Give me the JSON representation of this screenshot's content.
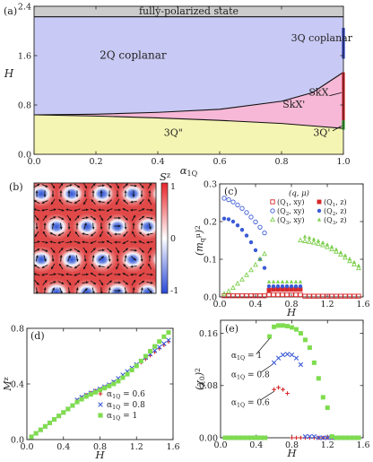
{
  "panel_labels": [
    "(a)",
    "(b)",
    "(c)",
    "(d)",
    "(e)"
  ],
  "chart_data": [
    {
      "id": "a",
      "type": "area",
      "xlabel": "α_{1Q}",
      "ylabel": "H",
      "xlim": [
        0.0,
        1.0
      ],
      "ylim": [
        0.0,
        2.4
      ],
      "xticks": [
        "0.0",
        "0.2",
        "0.4",
        "0.6",
        "0.8",
        "1.0"
      ],
      "yticks": [
        "0.0",
        "0.8",
        "1.6",
        "2.4"
      ],
      "regions": [
        {
          "name": "fully-polarized state",
          "color": "#cccccc",
          "label_pos": [
            0.5,
            2.33
          ]
        },
        {
          "name": "2Q coplanar",
          "color": "#c9c9f5",
          "label_pos": [
            0.32,
            1.55
          ]
        },
        {
          "name": "SkX'",
          "color": "#f6b8d6",
          "label_pos": [
            0.84,
            0.76
          ]
        },
        {
          "name": "3Q\"",
          "color": "#f5f5b3",
          "label_pos": [
            0.45,
            0.3
          ]
        }
      ],
      "boundary_2Q_SkX": [
        [
          0.0,
          0.64
        ],
        [
          0.2,
          0.65
        ],
        [
          0.4,
          0.68
        ],
        [
          0.6,
          0.73
        ],
        [
          0.8,
          0.86
        ],
        [
          0.9,
          1.0
        ],
        [
          1.0,
          1.33
        ]
      ],
      "boundary_SkX_3Q": [
        [
          0.0,
          0.64
        ],
        [
          0.2,
          0.62
        ],
        [
          0.4,
          0.59
        ],
        [
          0.6,
          0.55
        ],
        [
          0.8,
          0.5
        ],
        [
          0.9,
          0.46
        ],
        [
          1.0,
          0.42
        ]
      ],
      "saturation_H": 2.23,
      "edge_segments": [
        {
          "name": "3Q coplanar",
          "color": "#2a3fc4",
          "range": [
            1.55,
            2.05
          ]
        },
        {
          "name": "SkX",
          "color": "#d81e24",
          "range": [
            0.55,
            1.33
          ]
        },
        {
          "name": "3Q'",
          "color": "#2ea82e",
          "range": [
            0.4,
            0.55
          ]
        }
      ],
      "annotations": [
        {
          "text": "3Q coplanar",
          "at": [
            0.93,
            1.83
          ]
        },
        {
          "text": "SkX",
          "at": [
            0.92,
            0.95
          ]
        },
        {
          "text": "SkX'",
          "at": [
            0.84,
            0.76
          ]
        },
        {
          "text": "3Q'",
          "at": [
            0.93,
            0.3
          ]
        },
        {
          "text": "3Q\"",
          "at": [
            0.45,
            0.3
          ]
        }
      ]
    },
    {
      "id": "b",
      "type": "heatmap",
      "colorbar_label": "S^z",
      "colorbar_ticks": [
        "1",
        "0",
        "-1"
      ],
      "vmin": -1,
      "vmax": 1
    },
    {
      "id": "c",
      "type": "scatter",
      "xlabel": "H",
      "ylabel": "(m_q^μ)^2",
      "xlim": [
        0.0,
        1.6
      ],
      "ylim": [
        0.0,
        0.3
      ],
      "xticks": [
        "0.0",
        "0.4",
        "0.8",
        "1.2",
        "1.6"
      ],
      "yticks": [
        "0.0",
        "0.1",
        "0.2",
        "0.3"
      ],
      "legend_title": "(q, μ)",
      "legend_placement": "top-right",
      "series": [
        {
          "name": "(Q1, xy)",
          "marker": "square-open",
          "color": "#d62728",
          "x": [
            0.05,
            0.1,
            0.15,
            0.2,
            0.25,
            0.3,
            0.35,
            0.4,
            0.45,
            0.5,
            0.55,
            0.6,
            0.65,
            0.7,
            0.75,
            0.8,
            0.85,
            0.9,
            0.95,
            1.0,
            1.05,
            1.1,
            1.15,
            1.2,
            1.25,
            1.3,
            1.35,
            1.4,
            1.45,
            1.5,
            1.55
          ],
          "y": [
            0.003,
            0.003,
            0.003,
            0.003,
            0.003,
            0.003,
            0.003,
            0.003,
            0.003,
            0.003,
            0.006,
            0.006,
            0.006,
            0.006,
            0.006,
            0.006,
            0.006,
            0.006,
            0.002,
            0.002,
            0.002,
            0.002,
            0.002,
            0.002,
            0.002,
            0.002,
            0.002,
            0.002,
            0.002,
            0.002,
            0.002
          ]
        },
        {
          "name": "(Q1, z)",
          "marker": "square",
          "color": "#d62728",
          "x": [
            0.55,
            0.6,
            0.65,
            0.7,
            0.75,
            0.8,
            0.85,
            0.9
          ],
          "y": [
            0.018,
            0.02,
            0.02,
            0.02,
            0.02,
            0.02,
            0.02,
            0.02
          ]
        },
        {
          "name": "(Q2, xy)",
          "marker": "circle-open",
          "color": "#3b5bd6",
          "x": [
            0.05,
            0.1,
            0.15,
            0.2,
            0.25,
            0.3,
            0.35,
            0.4,
            0.45,
            0.5
          ],
          "y": [
            0.262,
            0.258,
            0.252,
            0.244,
            0.235,
            0.224,
            0.212,
            0.199,
            0.185,
            0.17
          ]
        },
        {
          "name": "(Q2, z)",
          "marker": "circle",
          "color": "#3b5bd6",
          "x": [
            0.05,
            0.1,
            0.15,
            0.2,
            0.25,
            0.3,
            0.35,
            0.4,
            0.45,
            0.5,
            0.55,
            0.6,
            0.65,
            0.7,
            0.75,
            0.8,
            0.85,
            0.9
          ],
          "y": [
            0.208,
            0.206,
            0.2,
            0.19,
            0.178,
            0.163,
            0.145,
            0.124,
            0.1,
            0.077,
            0.028,
            0.028,
            0.028,
            0.028,
            0.028,
            0.028,
            0.028,
            0.028
          ]
        },
        {
          "name": "(Q3, xy)",
          "marker": "triangle-open",
          "color": "#7fcf4f",
          "x": [
            0.05,
            0.1,
            0.15,
            0.2,
            0.25,
            0.3,
            0.35,
            0.4,
            0.45,
            0.5,
            0.9,
            0.95,
            1.0,
            1.05,
            1.1,
            1.15,
            1.2,
            1.25,
            1.3,
            1.35,
            1.4,
            1.45,
            1.5,
            1.55
          ],
          "y": [
            0.008,
            0.015,
            0.024,
            0.035,
            0.046,
            0.058,
            0.071,
            0.085,
            0.1,
            0.114,
            0.15,
            0.148,
            0.146,
            0.144,
            0.141,
            0.137,
            0.132,
            0.126,
            0.12,
            0.112,
            0.104,
            0.095,
            0.086,
            0.076
          ]
        },
        {
          "name": "(Q3, z)",
          "marker": "triangle",
          "color": "#7fcf4f",
          "x": [
            0.55,
            0.6,
            0.65,
            0.7,
            0.75,
            0.8,
            0.85,
            0.9,
            0.95,
            1.0,
            1.05,
            1.1,
            1.15,
            1.2,
            1.25,
            1.3,
            1.35,
            1.4,
            1.45,
            1.5,
            1.55
          ],
          "y": [
            0.04,
            0.04,
            0.04,
            0.04,
            0.04,
            0.04,
            0.04,
            0.04,
            0.16,
            0.157,
            0.153,
            0.149,
            0.144,
            0.139,
            0.133,
            0.126,
            0.118,
            0.11,
            0.101,
            0.092,
            0.083
          ]
        }
      ]
    },
    {
      "id": "d",
      "type": "scatter",
      "xlabel": "H",
      "ylabel": "M^z",
      "xlim": [
        0.0,
        1.6
      ],
      "ylim": [
        0.0,
        0.8
      ],
      "xticks": [
        "0.0",
        "0.4",
        "0.8",
        "1.2",
        "1.6"
      ],
      "yticks": [
        "0.0",
        "0.4",
        "0.8"
      ],
      "legend_placement": "bottom-right",
      "series": [
        {
          "name": "α_{1Q} = 0.6",
          "marker": "plus",
          "color": "#d62728",
          "x": [
            0.05,
            0.1,
            0.15,
            0.2,
            0.25,
            0.3,
            0.35,
            0.4,
            0.45,
            0.5,
            0.55,
            0.6,
            0.65,
            0.7,
            0.75,
            0.8,
            0.85,
            0.9,
            0.95,
            1.0,
            1.05,
            1.1,
            1.15,
            1.2,
            1.25,
            1.3,
            1.35,
            1.4,
            1.45,
            1.5,
            1.55
          ],
          "y": [
            0.02,
            0.045,
            0.07,
            0.095,
            0.12,
            0.145,
            0.17,
            0.195,
            0.22,
            0.245,
            0.28,
            0.3,
            0.32,
            0.335,
            0.35,
            0.36,
            0.375,
            0.39,
            0.41,
            0.43,
            0.455,
            0.48,
            0.505,
            0.53,
            0.555,
            0.58,
            0.605,
            0.63,
            0.655,
            0.68,
            0.705
          ]
        },
        {
          "name": "α_{1Q} = 0.8",
          "marker": "cross",
          "color": "#3b5bd6",
          "x": [
            0.05,
            0.1,
            0.15,
            0.2,
            0.25,
            0.3,
            0.35,
            0.4,
            0.45,
            0.5,
            0.55,
            0.6,
            0.65,
            0.7,
            0.75,
            0.8,
            0.85,
            0.9,
            0.95,
            1.0,
            1.05,
            1.1,
            1.15,
            1.2,
            1.25,
            1.3,
            1.35,
            1.4,
            1.45,
            1.5,
            1.55
          ],
          "y": [
            0.02,
            0.045,
            0.07,
            0.095,
            0.12,
            0.145,
            0.17,
            0.195,
            0.22,
            0.245,
            0.285,
            0.305,
            0.32,
            0.335,
            0.35,
            0.365,
            0.38,
            0.395,
            0.415,
            0.44,
            0.465,
            0.49,
            0.515,
            0.54,
            0.565,
            0.59,
            0.615,
            0.64,
            0.665,
            0.69,
            0.715
          ]
        },
        {
          "name": "α_{1Q} = 1",
          "marker": "square",
          "color": "#7fdc4f",
          "x": [
            0.05,
            0.1,
            0.15,
            0.2,
            0.25,
            0.3,
            0.35,
            0.4,
            0.45,
            0.5,
            0.55,
            0.6,
            0.65,
            0.7,
            0.75,
            0.8,
            0.85,
            0.9,
            0.95,
            1.0,
            1.05,
            1.1,
            1.15,
            1.2,
            1.25,
            1.3,
            1.35,
            1.4,
            1.45,
            1.5,
            1.55
          ],
          "y": [
            0.02,
            0.045,
            0.07,
            0.095,
            0.12,
            0.145,
            0.17,
            0.195,
            0.22,
            0.245,
            0.27,
            0.29,
            0.31,
            0.325,
            0.34,
            0.355,
            0.37,
            0.385,
            0.4,
            0.42,
            0.445,
            0.47,
            0.5,
            0.53,
            0.565,
            0.6,
            0.635,
            0.67,
            0.705,
            0.74,
            0.77
          ]
        }
      ]
    },
    {
      "id": "e",
      "type": "scatter",
      "xlabel": "H",
      "ylabel": "(χ_0)^2",
      "xlim": [
        0.0,
        1.6
      ],
      "ylim": [
        0.0,
        0.18
      ],
      "xticks": [
        "0.0",
        "0.4",
        "0.8",
        "1.2",
        "1.6"
      ],
      "yticks": [
        "0.00",
        "0.08",
        "0.16"
      ],
      "series": [
        {
          "name": "α_{1Q} = 0.6",
          "marker": "plus",
          "color": "#d62728",
          "x": [
            0.05,
            0.1,
            0.15,
            0.2,
            0.25,
            0.3,
            0.35,
            0.4,
            0.45,
            0.5,
            0.6,
            0.65,
            0.7,
            0.75,
            0.8,
            0.85,
            0.9,
            0.95,
            1.0,
            1.05,
            1.1,
            1.15,
            1.2,
            1.25,
            1.3,
            1.35,
            1.4,
            1.45,
            1.5,
            1.55
          ],
          "y": [
            0,
            0,
            0,
            0,
            0,
            0,
            0,
            0,
            0,
            0,
            0.074,
            0.077,
            0.074,
            0.068,
            0,
            0,
            0,
            0,
            0,
            0,
            0,
            0,
            0,
            0,
            0,
            0,
            0,
            0,
            0,
            0
          ]
        },
        {
          "name": "α_{1Q} = 0.8",
          "marker": "cross",
          "color": "#3b5bd6",
          "x": [
            0.05,
            0.1,
            0.15,
            0.2,
            0.25,
            0.3,
            0.35,
            0.4,
            0.45,
            0.5,
            0.6,
            0.65,
            0.7,
            0.75,
            0.8,
            0.85,
            0.9,
            0.95,
            1.0,
            1.05,
            1.1,
            1.15,
            1.2,
            1.25,
            1.3,
            1.35,
            1.4,
            1.45,
            1.5,
            1.55
          ],
          "y": [
            0,
            0,
            0,
            0,
            0,
            0,
            0,
            0,
            0,
            0,
            0.115,
            0.122,
            0.127,
            0.128,
            0.127,
            0.122,
            0.112,
            0.002,
            0.002,
            0.002,
            0,
            0,
            0,
            0,
            0,
            0,
            0,
            0,
            0,
            0
          ]
        },
        {
          "name": "α_{1Q} = 1",
          "marker": "square",
          "color": "#7fdc4f",
          "x": [
            0.05,
            0.1,
            0.15,
            0.2,
            0.25,
            0.3,
            0.35,
            0.4,
            0.45,
            0.5,
            0.55,
            0.6,
            0.65,
            0.7,
            0.75,
            0.8,
            0.85,
            0.9,
            0.95,
            1.0,
            1.05,
            1.1,
            1.15,
            1.2,
            1.25,
            1.3,
            1.35,
            1.4,
            1.45,
            1.5,
            1.55
          ],
          "y": [
            0,
            0,
            0,
            0,
            0,
            0,
            0,
            0,
            0,
            0,
            0.155,
            0.17,
            0.172,
            0.172,
            0.171,
            0.169,
            0.166,
            0.16,
            0.15,
            0.138,
            0.115,
            0.091,
            0.062,
            0.046,
            0.002,
            0,
            0,
            0,
            0,
            0,
            0
          ]
        }
      ],
      "annotations": [
        {
          "text": "α_{1Q} = 1",
          "at": [
            0.12,
            0.122
          ]
        },
        {
          "text": "α_{1Q} = 0.8",
          "at": [
            0.12,
            0.093
          ]
        },
        {
          "text": "α_{1Q} = 0.6",
          "at": [
            0.12,
            0.05
          ]
        }
      ]
    }
  ]
}
